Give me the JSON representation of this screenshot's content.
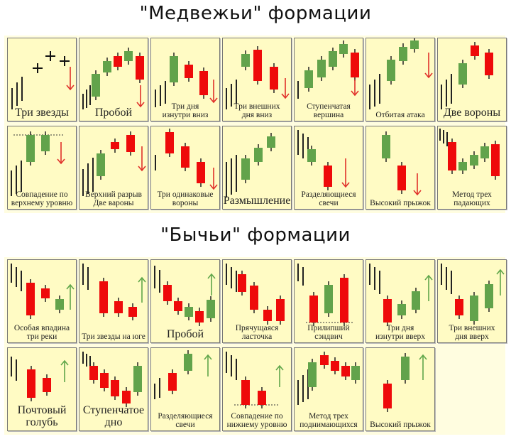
{
  "bearish": {
    "title": "\"Медвежьи\" формации",
    "patterns": [
      {
        "label": "Три звезды"
      },
      {
        "label": "Пробой"
      },
      {
        "label": "Три дня\nизнутри вниз"
      },
      {
        "label": "Три внешних\nдня вниз"
      },
      {
        "label": "Ступенчатая\nвершина"
      },
      {
        "label": "Отбитая атака"
      },
      {
        "label": "Две вороны"
      },
      {
        "label": "Совпадение по\nверхнему уровню"
      },
      {
        "label": "Верхний разрыв\nДве вароны"
      },
      {
        "label": "Три одинаковые\nвороны"
      },
      {
        "label": "Размышление"
      },
      {
        "label": "Разделяющиеся\nсвечи"
      },
      {
        "label": "Высокий прыжок"
      },
      {
        "label": "Метод трех\nпадающих"
      }
    ]
  },
  "bullish": {
    "title": "\"Бычьи\" формации",
    "patterns": [
      {
        "label": "Особая впадина\nтри реки"
      },
      {
        "label": "Три звезды на юге"
      },
      {
        "label": "Пробой"
      },
      {
        "label": "Прячущаяся\nласточка"
      },
      {
        "label": "Прилипший\nсэндвич"
      },
      {
        "label": "Три дня\nизнутри вверх"
      },
      {
        "label": "Три внешних\nдня вверх"
      },
      {
        "label": "Почтовый\nголубь"
      },
      {
        "label": "Ступенчатое\nдно"
      },
      {
        "label": "Разделяющиеся\nсвечи"
      },
      {
        "label": "Совпадение по\nнижнему уровню"
      },
      {
        "label": "Метод трех\nподнимающихся"
      },
      {
        "label": "Высокий прыжок"
      }
    ]
  },
  "colors": {
    "bullish_candle": "#62a34b",
    "bearish_candle": "#ee0a0a",
    "bearish_arrow": "#e0302a",
    "bullish_arrow": "#5fa64a",
    "cell_bg": "#fffbc4"
  }
}
